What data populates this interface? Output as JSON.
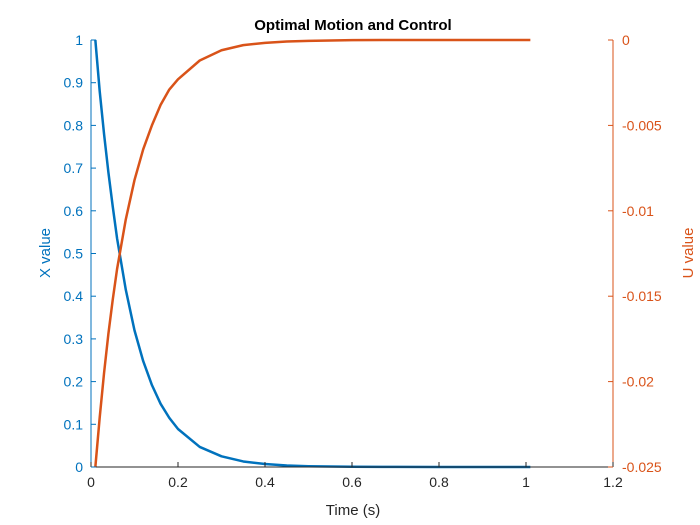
{
  "chart_data": {
    "type": "line",
    "title": "Optimal Motion and Control",
    "xlabel": "Time (s)",
    "ylabel_left": "X value",
    "ylabel_right": "U value",
    "xlim": [
      0,
      1.2
    ],
    "ylim_left": [
      0,
      1
    ],
    "ylim_right": [
      -0.025,
      0
    ],
    "x_ticks": [
      "0",
      "0.2",
      "0.4",
      "0.6",
      "0.8",
      "1",
      "1.2"
    ],
    "y_left_ticks": [
      "0",
      "0.1",
      "0.2",
      "0.3",
      "0.4",
      "0.5",
      "0.6",
      "0.7",
      "0.8",
      "0.9",
      "1"
    ],
    "y_right_ticks": [
      "-0.025",
      "-0.02",
      "-0.015",
      "-0.01",
      "-0.005",
      "0"
    ],
    "grid": false,
    "colors": {
      "left": "#0072BD",
      "right": "#D95319"
    },
    "series": [
      {
        "axis": "left",
        "x": [
          0.01,
          0.02,
          0.03,
          0.04,
          0.05,
          0.06,
          0.08,
          0.1,
          0.12,
          0.14,
          0.16,
          0.18,
          0.2,
          0.25,
          0.3,
          0.35,
          0.4,
          0.45,
          0.5,
          0.6,
          0.7,
          0.8,
          0.9,
          1.0,
          1.01
        ],
        "y": [
          1.0,
          0.88,
          0.78,
          0.69,
          0.61,
          0.535,
          0.415,
          0.32,
          0.248,
          0.192,
          0.148,
          0.115,
          0.089,
          0.047,
          0.025,
          0.013,
          0.007,
          0.0036,
          0.0019,
          0.0005,
          0.0002,
          0.0001,
          0.0,
          0.0,
          0.0
        ]
      },
      {
        "axis": "right",
        "x": [
          0.01,
          0.02,
          0.03,
          0.04,
          0.05,
          0.06,
          0.08,
          0.1,
          0.12,
          0.14,
          0.16,
          0.18,
          0.2,
          0.25,
          0.3,
          0.35,
          0.4,
          0.45,
          0.5,
          0.6,
          0.7,
          0.8,
          0.9,
          1.0,
          1.01
        ],
        "y": [
          -0.025,
          -0.0221,
          -0.0195,
          -0.0172,
          -0.0152,
          -0.0134,
          -0.0105,
          -0.0082,
          -0.0064,
          -0.005,
          -0.0038,
          -0.0029,
          -0.0023,
          -0.0012,
          -0.0006,
          -0.0003,
          -0.00017,
          -9e-05,
          -5e-05,
          -1e-05,
          0.0,
          0.0,
          0.0,
          0.0,
          0.0
        ]
      }
    ]
  }
}
